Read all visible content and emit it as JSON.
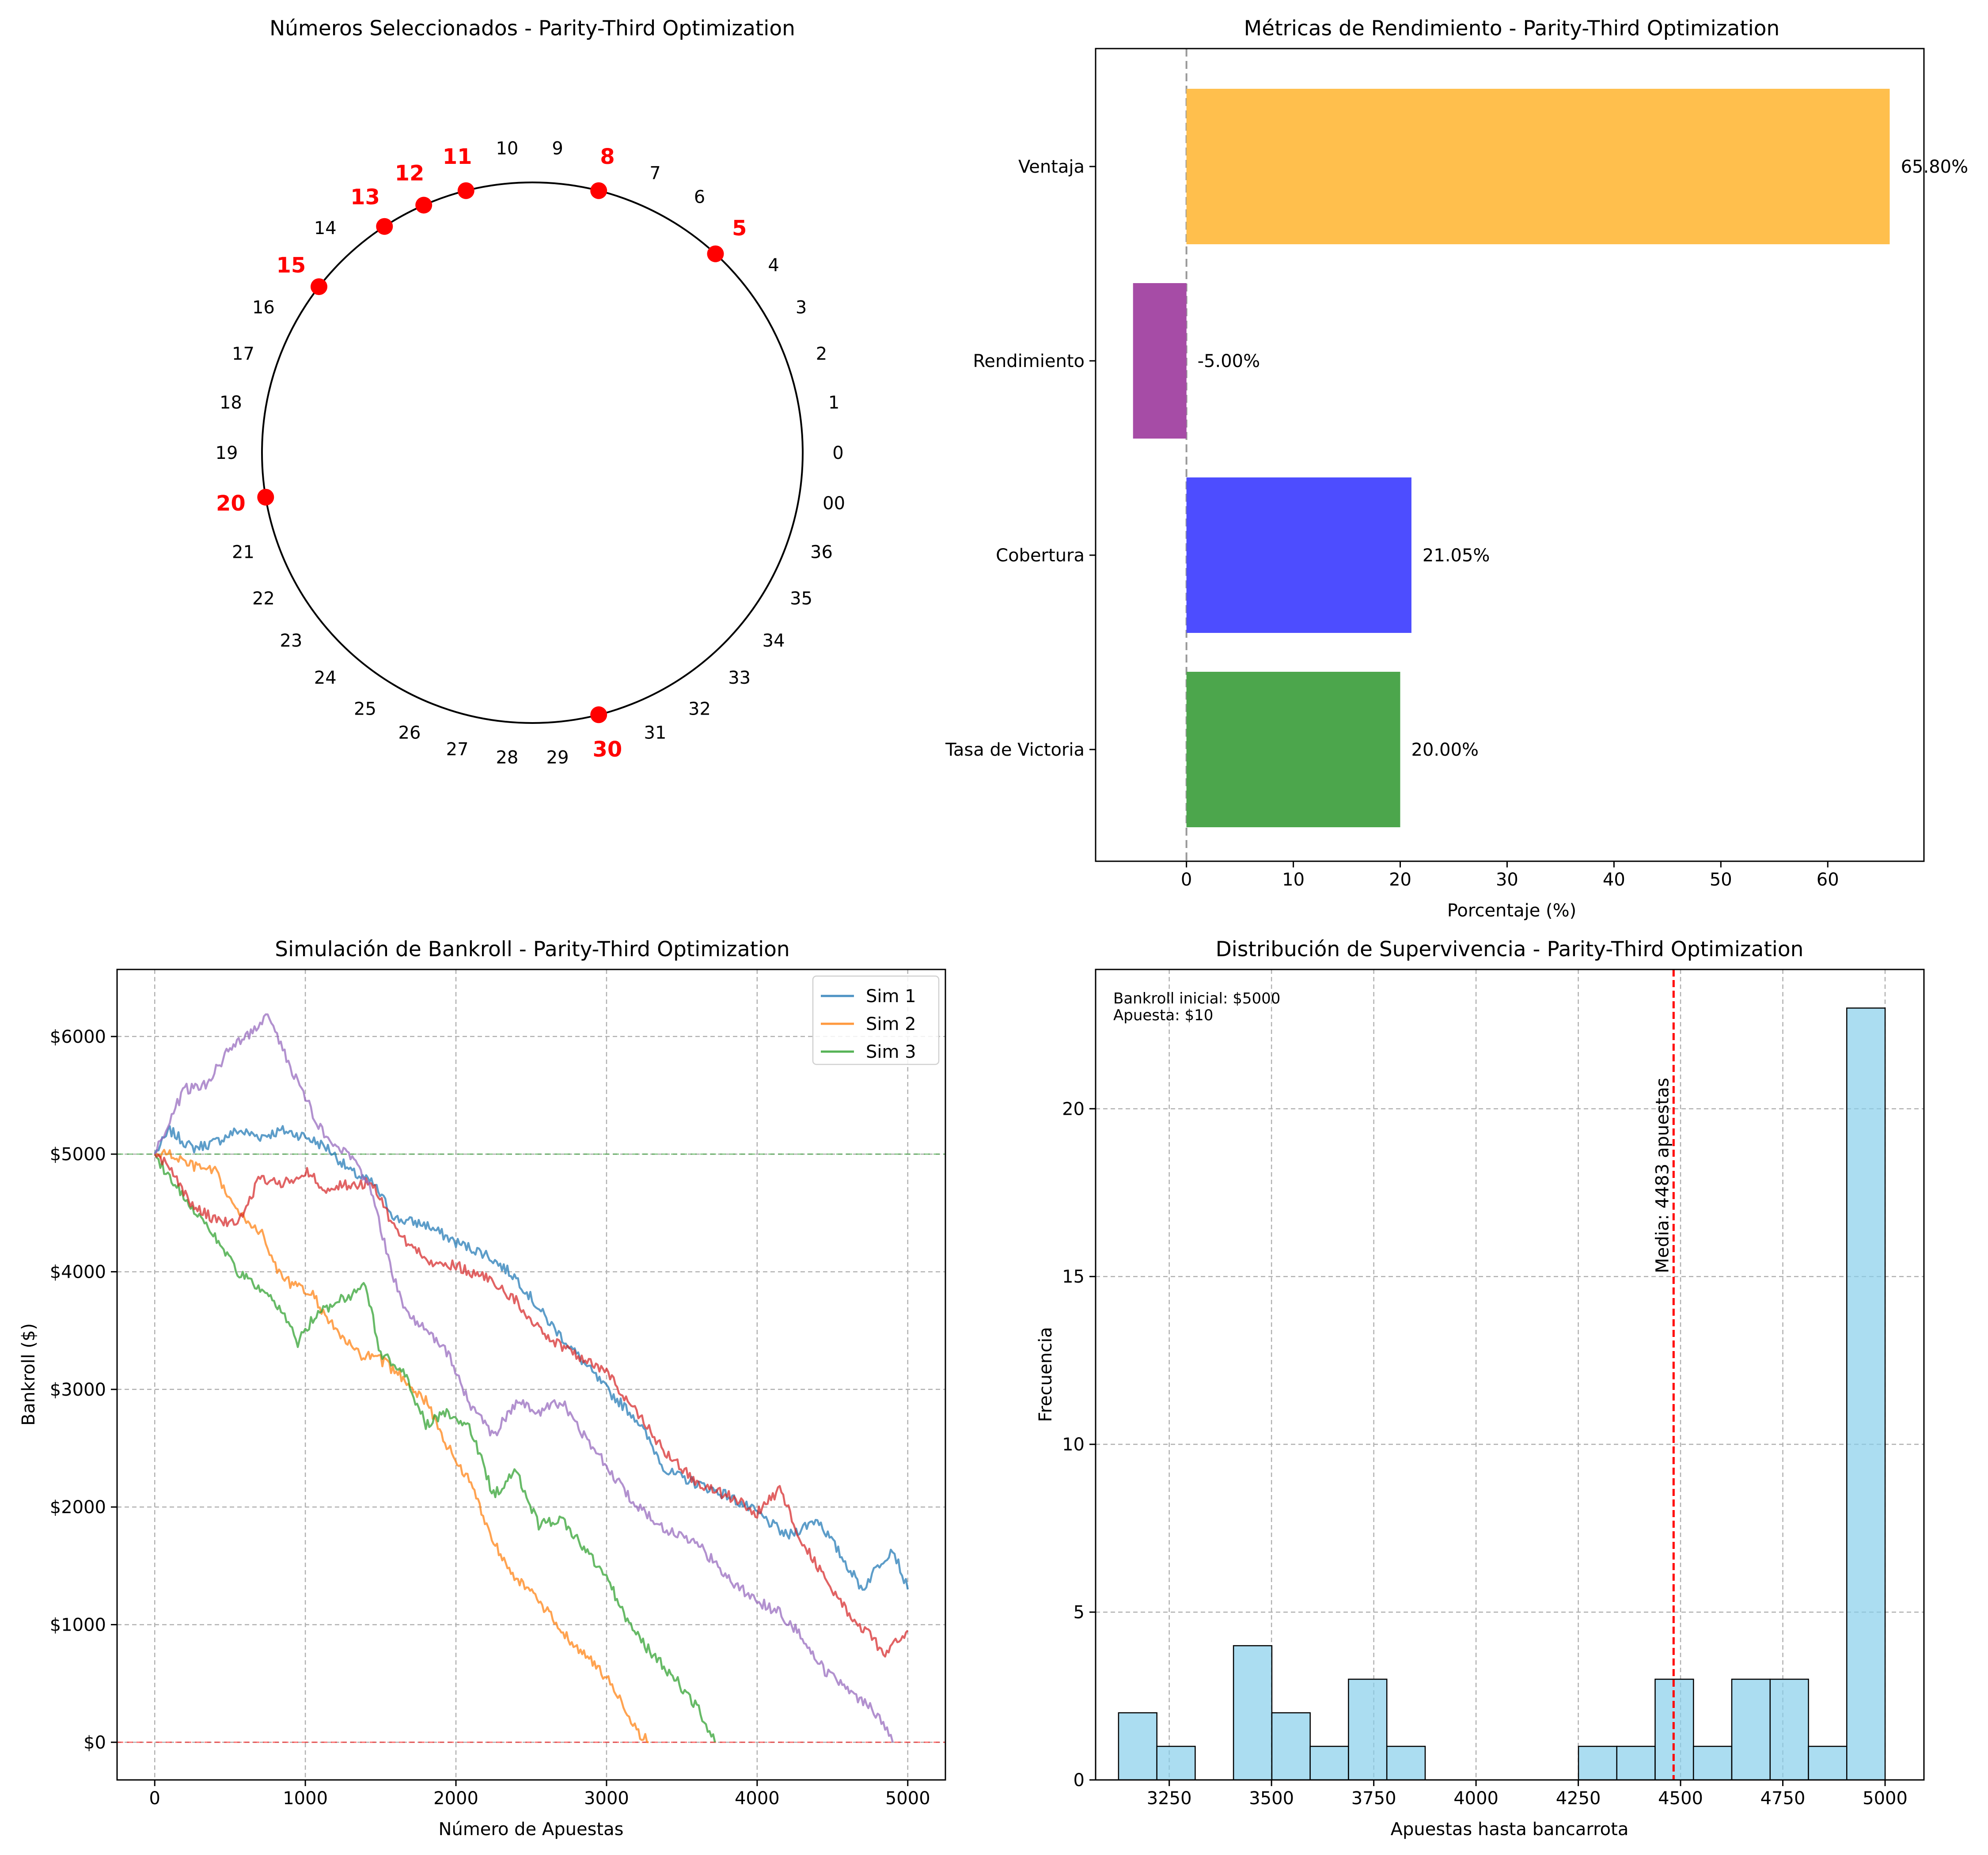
{
  "chart_data": [
    {
      "type": "polar-scatter",
      "title": "Números Seleccionados - Parity-Third Optimization",
      "wheel_order": [
        "0",
        "1",
        "2",
        "3",
        "4",
        "5",
        "6",
        "7",
        "8",
        "9",
        "10",
        "11",
        "12",
        "13",
        "14",
        "15",
        "16",
        "17",
        "18",
        "19",
        "20",
        "21",
        "22",
        "23",
        "24",
        "25",
        "26",
        "27",
        "28",
        "29",
        "30",
        "31",
        "32",
        "33",
        "34",
        "35",
        "36",
        "00"
      ],
      "selected": [
        "5",
        "8",
        "11",
        "12",
        "13",
        "15",
        "20",
        "30"
      ],
      "colors": {
        "selected": "#ff0000",
        "circle": "#000000",
        "label": "#000000"
      }
    },
    {
      "type": "bar",
      "orientation": "horizontal",
      "title": "Métricas de Rendimiento - Parity-Third Optimization",
      "xlabel": "Porcentaje (%)",
      "ylabel": "",
      "categories": [
        "Tasa de Victoria",
        "Cobertura",
        "Rendimiento",
        "Ventaja"
      ],
      "values": [
        20.0,
        21.05,
        -5.0,
        65.8
      ],
      "value_labels": [
        "20.00%",
        "21.05%",
        "-5.00%",
        "65.80%"
      ],
      "colors": [
        "#4ca64c",
        "#4d4dff",
        "#a64ca6",
        "#ffbf4d"
      ],
      "xlim": [
        -8.5,
        69.0
      ],
      "xticks": [
        0,
        10,
        20,
        30,
        40,
        50,
        60
      ],
      "reference_line": {
        "x": 0,
        "style": "dashed",
        "color": "#999999"
      }
    },
    {
      "type": "line",
      "title": "Simulación de Bankroll - Parity-Third Optimization",
      "xlabel": "Número de Apuestas",
      "ylabel": "Bankroll ($)",
      "xlim": [
        -250,
        5250
      ],
      "ylim": [
        -320,
        6570
      ],
      "xticks": [
        0,
        1000,
        2000,
        3000,
        4000,
        5000
      ],
      "yticks": [
        0,
        1000,
        2000,
        3000,
        4000,
        5000,
        6000
      ],
      "ytick_labels": [
        "$0",
        "$1000",
        "$2000",
        "$3000",
        "$4000",
        "$5000",
        "$6000"
      ],
      "grid": true,
      "legend": "top-right",
      "hlines": [
        {
          "y": 5000,
          "color": "#2ca02c"
        },
        {
          "y": 0,
          "color": "#ff0000"
        }
      ],
      "series": [
        {
          "name": "Sim 1",
          "color": "#1f77b4",
          "points": [
            [
              0,
              5000
            ],
            [
              100,
              5200
            ],
            [
              250,
              5050
            ],
            [
              400,
              5100
            ],
            [
              550,
              5200
            ],
            [
              700,
              5150
            ],
            [
              850,
              5200
            ],
            [
              1000,
              5150
            ],
            [
              1150,
              5050
            ],
            [
              1300,
              4850
            ],
            [
              1450,
              4750
            ],
            [
              1600,
              4450
            ],
            [
              1800,
              4400
            ],
            [
              2000,
              4250
            ],
            [
              2200,
              4150
            ],
            [
              2400,
              3950
            ],
            [
              2600,
              3600
            ],
            [
              2800,
              3300
            ],
            [
              3000,
              3000
            ],
            [
              3200,
              2750
            ],
            [
              3400,
              2300
            ],
            [
              3600,
              2200
            ],
            [
              3800,
              2100
            ],
            [
              4000,
              1950
            ],
            [
              4200,
              1750
            ],
            [
              4400,
              1900
            ],
            [
              4550,
              1600
            ],
            [
              4700,
              1300
            ],
            [
              4800,
              1500
            ],
            [
              4900,
              1650
            ],
            [
              5000,
              1300
            ]
          ]
        },
        {
          "name": "Sim 2",
          "color": "#ff7f0e",
          "points": [
            [
              0,
              5000
            ],
            [
              100,
              5000
            ],
            [
              250,
              4900
            ],
            [
              400,
              4850
            ],
            [
              550,
              4500
            ],
            [
              700,
              4350
            ],
            [
              800,
              4050
            ],
            [
              900,
              3900
            ],
            [
              1050,
              3800
            ],
            [
              1200,
              3500
            ],
            [
              1350,
              3300
            ],
            [
              1500,
              3250
            ],
            [
              1650,
              3100
            ],
            [
              1800,
              2900
            ],
            [
              1950,
              2500
            ],
            [
              2100,
              2200
            ],
            [
              2250,
              1700
            ],
            [
              2400,
              1400
            ],
            [
              2550,
              1200
            ],
            [
              2700,
              950
            ],
            [
              2850,
              750
            ],
            [
              3000,
              550
            ],
            [
              3100,
              350
            ],
            [
              3200,
              100
            ],
            [
              3280,
              0
            ]
          ]
        },
        {
          "name": "Sim 3",
          "color": "#2ca02c",
          "points": [
            [
              0,
              5000
            ],
            [
              100,
              4800
            ],
            [
              250,
              4550
            ],
            [
              400,
              4300
            ],
            [
              550,
              4000
            ],
            [
              700,
              3850
            ],
            [
              850,
              3650
            ],
            [
              950,
              3400
            ],
            [
              1050,
              3600
            ],
            [
              1200,
              3750
            ],
            [
              1300,
              3800
            ],
            [
              1400,
              3900
            ],
            [
              1500,
              3300
            ],
            [
              1650,
              3150
            ],
            [
              1800,
              2700
            ],
            [
              1950,
              2800
            ],
            [
              2100,
              2650
            ],
            [
              2250,
              2100
            ],
            [
              2400,
              2300
            ],
            [
              2550,
              1850
            ],
            [
              2700,
              1900
            ],
            [
              2850,
              1650
            ],
            [
              3000,
              1400
            ],
            [
              3150,
              1000
            ],
            [
              3300,
              750
            ],
            [
              3450,
              550
            ],
            [
              3600,
              300
            ],
            [
              3720,
              0
            ]
          ]
        },
        {
          "name": "",
          "color": "#d62728",
          "points": [
            [
              0,
              5000
            ],
            [
              100,
              4900
            ],
            [
              250,
              4550
            ],
            [
              400,
              4450
            ],
            [
              550,
              4400
            ],
            [
              700,
              4800
            ],
            [
              850,
              4750
            ],
            [
              1000,
              4850
            ],
            [
              1150,
              4700
            ],
            [
              1300,
              4750
            ],
            [
              1450,
              4750
            ],
            [
              1600,
              4350
            ],
            [
              1800,
              4100
            ],
            [
              2000,
              4050
            ],
            [
              2200,
              3950
            ],
            [
              2400,
              3750
            ],
            [
              2600,
              3450
            ],
            [
              2800,
              3300
            ],
            [
              3000,
              3150
            ],
            [
              3200,
              2800
            ],
            [
              3400,
              2450
            ],
            [
              3600,
              2200
            ],
            [
              3800,
              2100
            ],
            [
              4000,
              1950
            ],
            [
              4150,
              2150
            ],
            [
              4300,
              1700
            ],
            [
              4450,
              1400
            ],
            [
              4600,
              1100
            ],
            [
              4750,
              900
            ],
            [
              4850,
              750
            ],
            [
              5000,
              950
            ]
          ]
        },
        {
          "name": "",
          "color": "#9467bd",
          "points": [
            [
              0,
              5000
            ],
            [
              100,
              5300
            ],
            [
              200,
              5550
            ],
            [
              350,
              5600
            ],
            [
              500,
              5900
            ],
            [
              650,
              6050
            ],
            [
              750,
              6200
            ],
            [
              850,
              5900
            ],
            [
              950,
              5600
            ],
            [
              1050,
              5350
            ],
            [
              1150,
              5100
            ],
            [
              1300,
              5000
            ],
            [
              1450,
              4650
            ],
            [
              1550,
              4100
            ],
            [
              1650,
              3700
            ],
            [
              1800,
              3500
            ],
            [
              1950,
              3300
            ],
            [
              2100,
              2850
            ],
            [
              2250,
              2600
            ],
            [
              2400,
              2900
            ],
            [
              2550,
              2800
            ],
            [
              2700,
              2900
            ],
            [
              2850,
              2600
            ],
            [
              3000,
              2350
            ],
            [
              3200,
              2000
            ],
            [
              3400,
              1800
            ],
            [
              3600,
              1700
            ],
            [
              3800,
              1400
            ],
            [
              4000,
              1200
            ],
            [
              4150,
              1100
            ],
            [
              4300,
              900
            ],
            [
              4450,
              600
            ],
            [
              4600,
              450
            ],
            [
              4750,
              300
            ],
            [
              4850,
              150
            ],
            [
              4900,
              0
            ]
          ]
        }
      ]
    },
    {
      "type": "histogram",
      "title": "Distribución de Supervivencia - Parity-Third Optimization",
      "xlabel": "Apuestas hasta bancarrota",
      "ylabel": "Frecuencia",
      "xlim": [
        3070,
        5095
      ],
      "ylim": [
        0,
        24.15
      ],
      "xticks": [
        3250,
        3500,
        3750,
        4000,
        4250,
        4500,
        4750,
        5000
      ],
      "yticks": [
        0,
        5,
        10,
        15,
        20
      ],
      "bin_edges": [
        3126,
        3219.7,
        3313.4,
        3407.1,
        3500.8,
        3594.5,
        3688.2,
        3781.9,
        3875.6,
        3969.3,
        4063,
        4156.7,
        4250.4,
        4344.1,
        4437.8,
        4531.5,
        4625.2,
        4718.9,
        4812.6,
        4906.3,
        5000
      ],
      "counts": [
        2,
        1,
        0,
        4,
        2,
        1,
        3,
        1,
        0,
        0,
        0,
        0,
        1,
        1,
        3,
        1,
        3,
        3,
        1,
        23
      ],
      "bar_color": "#87ceeb",
      "mean": 4483,
      "mean_label": "Media: 4483 apuestas",
      "annotation": [
        "Bankroll inicial: $5000",
        "Apuesta: $10"
      ]
    }
  ]
}
